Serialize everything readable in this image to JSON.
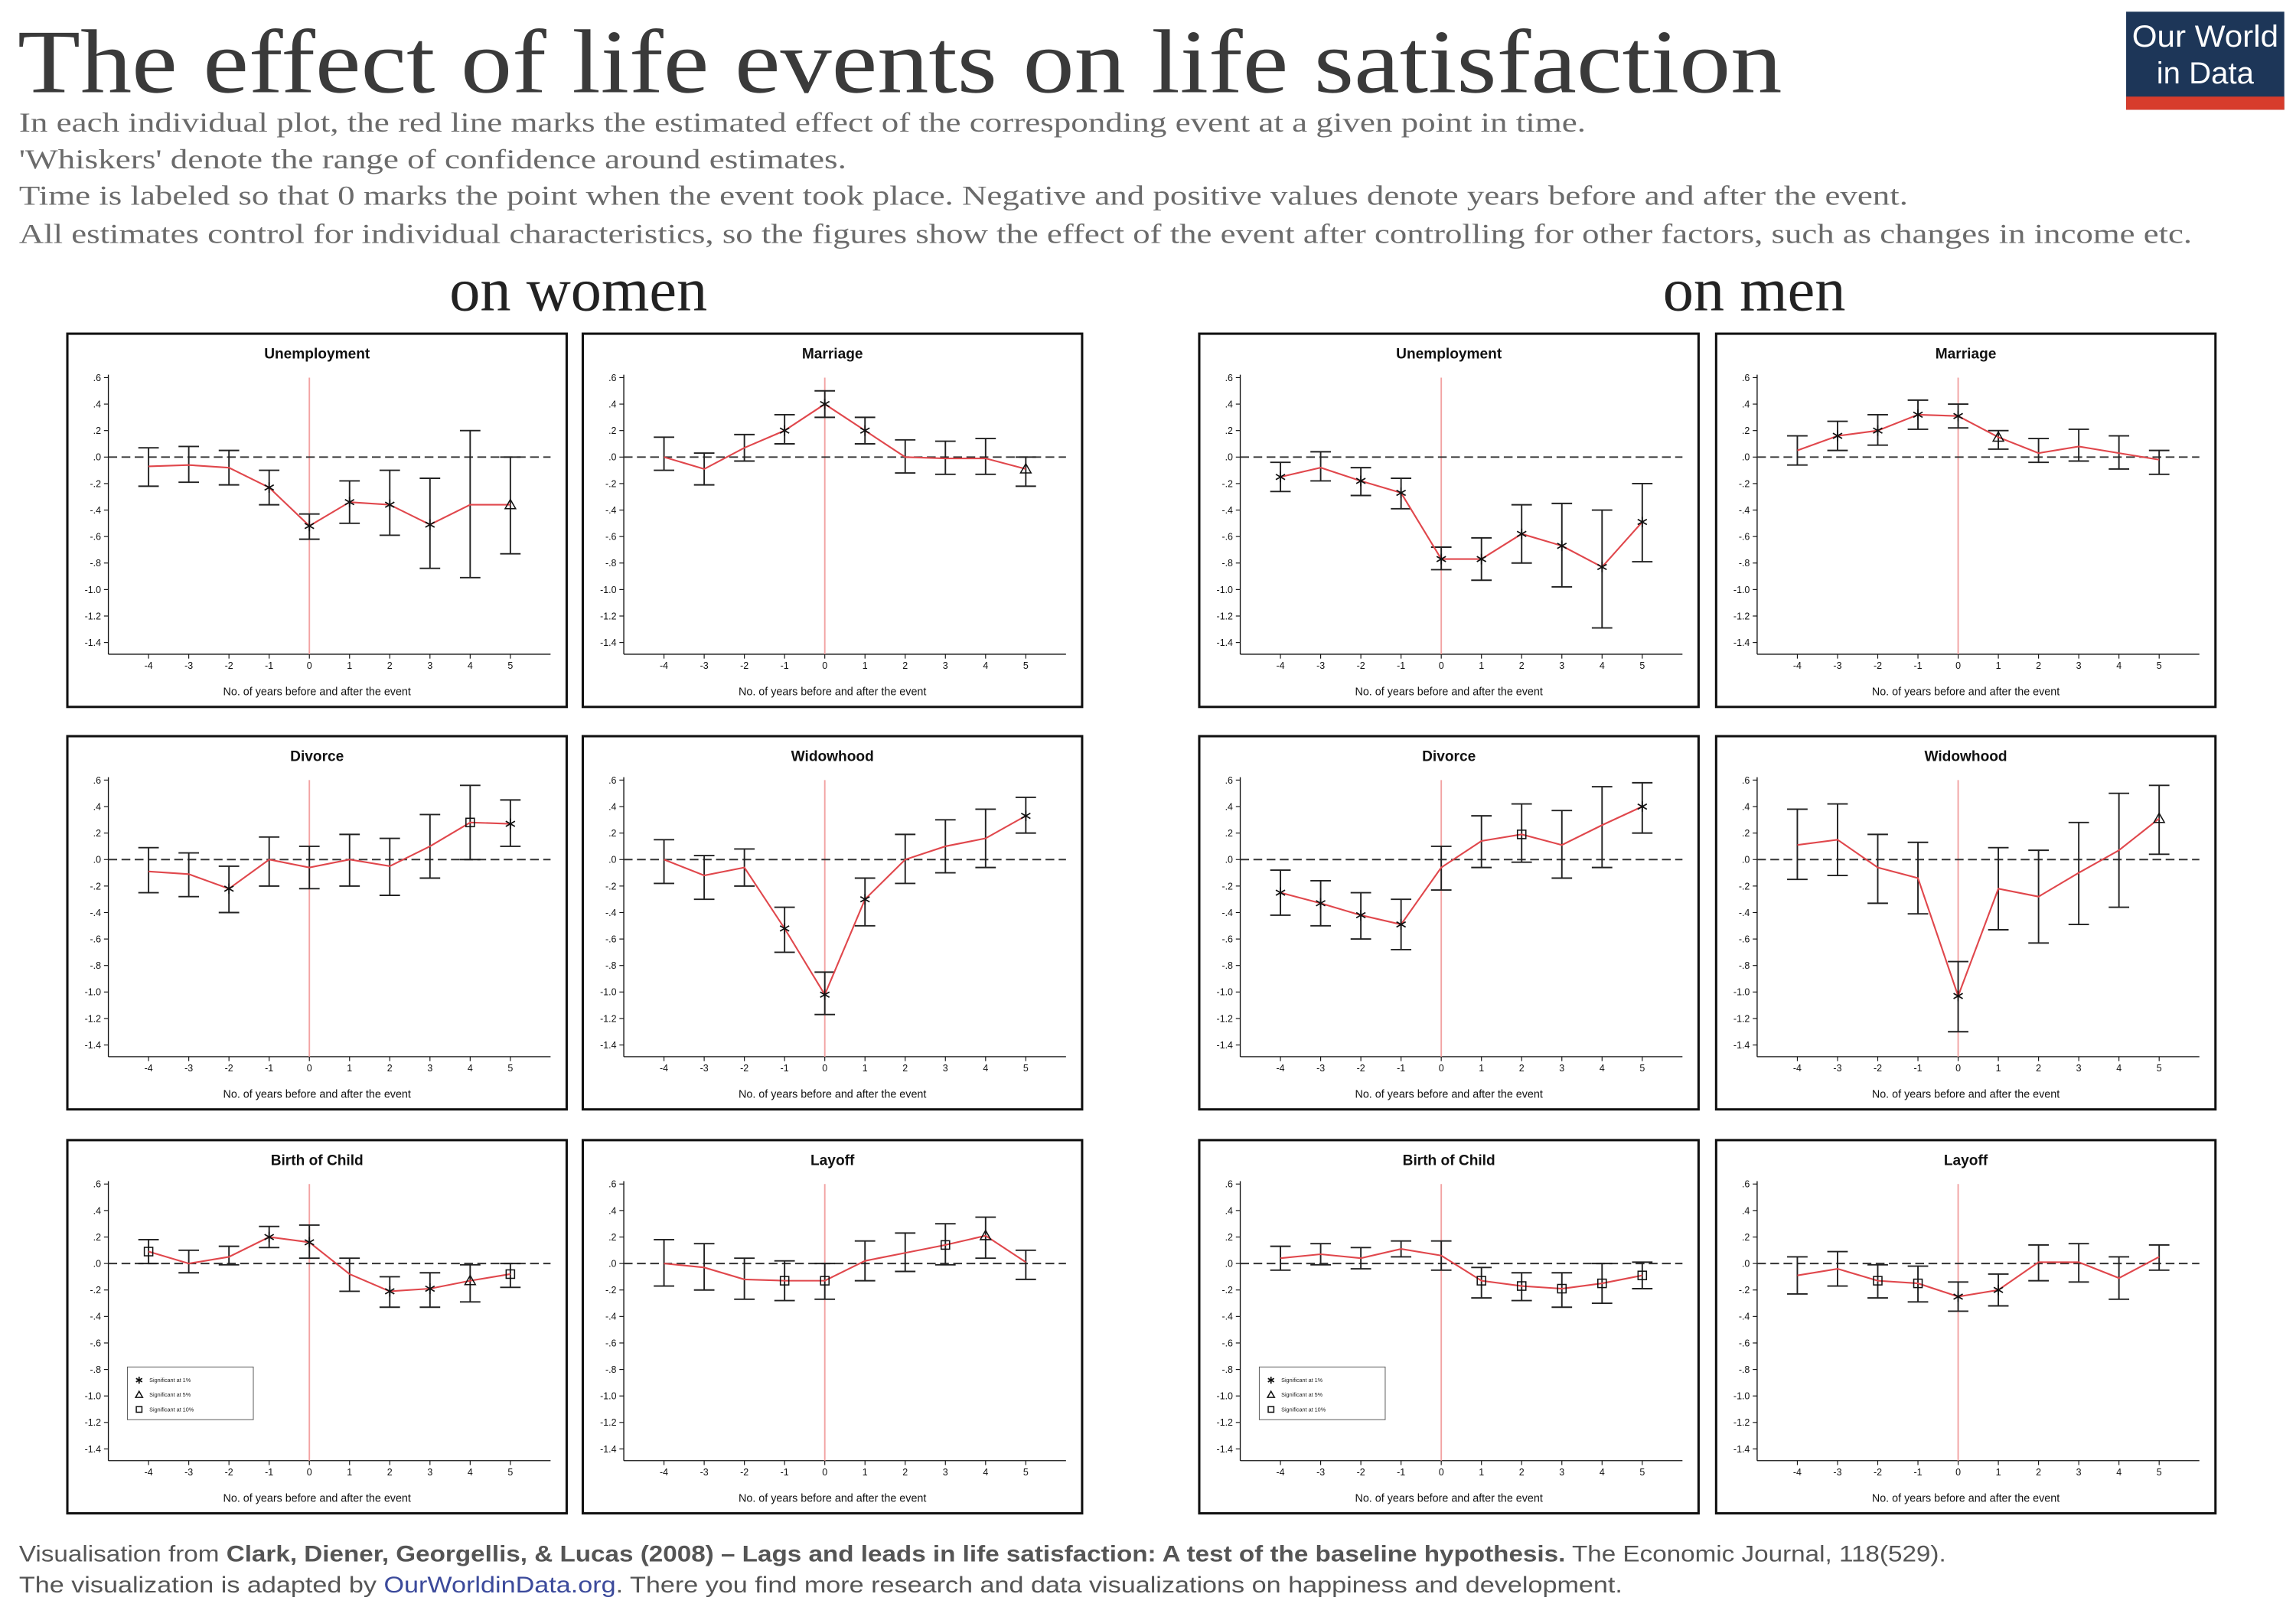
{
  "header": {
    "title": "The effect of life events on life satisfaction",
    "subtitle": [
      "In each individual plot, the red line marks the estimated effect of the corresponding event at a given point in time.",
      "'Whiskers' denote the range of confidence around estimates.",
      "Time is labeled so that 0 marks the point when the event took place. Negative and positive values denote years before and after the event.",
      "All estimates control for individual characteristics, so the figures show the effect of the event after controlling for other factors, such as changes in income etc."
    ],
    "logo": [
      "Our World",
      "in Data"
    ]
  },
  "groups": [
    "on women",
    "on men"
  ],
  "axes": {
    "x_label": "No. of years before and after the event",
    "xticks": [
      -4,
      -3,
      -2,
      -1,
      0,
      1,
      2,
      3,
      4,
      5
    ],
    "yticks": [
      {
        "value": 0.6,
        "label": ".6"
      },
      {
        "value": 0.4,
        "label": ".4"
      },
      {
        "value": 0.2,
        "label": ".2"
      },
      {
        "value": 0,
        "label": ".0"
      },
      {
        "value": -0.2,
        "label": "-.2"
      },
      {
        "value": -0.4,
        "label": "-.4"
      },
      {
        "value": -0.6,
        "label": "-.6"
      },
      {
        "value": -0.8,
        "label": "-.8"
      },
      {
        "value": -1.0,
        "label": "-1.0"
      },
      {
        "value": -1.2,
        "label": "-1.2"
      },
      {
        "value": -1.4,
        "label": "-1.4"
      }
    ],
    "baseline": 0,
    "event_x": 0,
    "line_color": "#e0474c",
    "event_color": "#f2a3a3"
  },
  "chart_data": [
    {
      "type": "line",
      "title": "Unemployment",
      "xlim": [
        -5,
        6
      ],
      "ylim": [
        -1.4,
        0.6
      ],
      "x": [
        -4,
        -3,
        -2,
        -1,
        0,
        1,
        2,
        3,
        4,
        5
      ],
      "values": [
        -0.07,
        -0.06,
        -0.08,
        -0.23,
        -0.52,
        -0.34,
        -0.36,
        -0.51,
        -0.36,
        -0.36
      ],
      "lower": [
        -0.22,
        -0.19,
        -0.21,
        -0.36,
        -0.62,
        -0.5,
        -0.59,
        -0.84,
        -0.91,
        -0.73
      ],
      "upper": [
        0.07,
        0.08,
        0.05,
        -0.1,
        -0.43,
        -0.18,
        -0.1,
        -0.16,
        0.2,
        0.0
      ],
      "markers": [
        null,
        null,
        null,
        "star",
        "star",
        "star",
        "star",
        "star",
        null,
        "triangle"
      ]
    },
    {
      "type": "line",
      "title": "Marriage",
      "xlim": [
        -5,
        6
      ],
      "ylim": [
        -1.4,
        0.6
      ],
      "x": [
        -4,
        -3,
        -2,
        -1,
        0,
        1,
        2,
        3,
        4,
        5
      ],
      "values": [
        0.0,
        -0.09,
        0.07,
        0.2,
        0.4,
        0.2,
        0.0,
        -0.01,
        -0.01,
        -0.09
      ],
      "lower": [
        -0.1,
        -0.21,
        -0.03,
        0.1,
        0.3,
        0.1,
        -0.12,
        -0.13,
        -0.13,
        -0.22
      ],
      "upper": [
        0.15,
        0.03,
        0.17,
        0.32,
        0.5,
        0.3,
        0.13,
        0.12,
        0.14,
        0.0
      ],
      "markers": [
        null,
        null,
        null,
        "star",
        "star",
        "star",
        null,
        null,
        null,
        "triangle"
      ]
    },
    {
      "type": "line",
      "title": "Unemployment",
      "xlim": [
        -5,
        6
      ],
      "ylim": [
        -1.4,
        0.6
      ],
      "x": [
        -4,
        -3,
        -2,
        -1,
        0,
        1,
        2,
        3,
        4,
        5
      ],
      "values": [
        -0.15,
        -0.08,
        -0.18,
        -0.27,
        -0.77,
        -0.77,
        -0.58,
        -0.67,
        -0.83,
        -0.49
      ],
      "lower": [
        -0.26,
        -0.18,
        -0.29,
        -0.39,
        -0.85,
        -0.93,
        -0.8,
        -0.98,
        -1.29,
        -0.79
      ],
      "upper": [
        -0.04,
        0.04,
        -0.08,
        -0.16,
        -0.68,
        -0.61,
        -0.36,
        -0.35,
        -0.4,
        -0.2
      ],
      "markers": [
        "star",
        null,
        "star",
        "star",
        "star",
        "star",
        "star",
        "star",
        "star",
        "star"
      ]
    },
    {
      "type": "line",
      "title": "Marriage",
      "xlim": [
        -5,
        6
      ],
      "ylim": [
        -1.4,
        0.6
      ],
      "x": [
        -4,
        -3,
        -2,
        -1,
        0,
        1,
        2,
        3,
        4,
        5
      ],
      "values": [
        0.05,
        0.16,
        0.2,
        0.32,
        0.31,
        0.15,
        0.03,
        0.08,
        0.03,
        -0.02
      ],
      "lower": [
        -0.06,
        0.05,
        0.09,
        0.21,
        0.22,
        0.06,
        -0.04,
        -0.03,
        -0.09,
        -0.13
      ],
      "upper": [
        0.16,
        0.27,
        0.32,
        0.43,
        0.4,
        0.2,
        0.14,
        0.21,
        0.16,
        0.05
      ],
      "markers": [
        null,
        "star",
        "star",
        "star",
        "star",
        "triangle",
        null,
        null,
        null,
        null
      ]
    },
    {
      "type": "line",
      "title": "Divorce",
      "xlim": [
        -5,
        6
      ],
      "ylim": [
        -1.4,
        0.6
      ],
      "x": [
        -4,
        -3,
        -2,
        -1,
        0,
        1,
        2,
        3,
        4,
        5
      ],
      "values": [
        -0.09,
        -0.11,
        -0.22,
        0.0,
        -0.06,
        0.0,
        -0.05,
        0.1,
        0.28,
        0.27
      ],
      "lower": [
        -0.25,
        -0.28,
        -0.4,
        -0.2,
        -0.22,
        -0.2,
        -0.27,
        -0.14,
        0.0,
        0.1
      ],
      "upper": [
        0.09,
        0.05,
        -0.05,
        0.17,
        0.1,
        0.19,
        0.16,
        0.34,
        0.56,
        0.45
      ],
      "markers": [
        null,
        null,
        "star",
        null,
        null,
        null,
        null,
        null,
        "square",
        "star"
      ]
    },
    {
      "type": "line",
      "title": "Widowhood",
      "xlim": [
        -5,
        6
      ],
      "ylim": [
        -1.4,
        0.6
      ],
      "x": [
        -4,
        -3,
        -2,
        -1,
        0,
        1,
        2,
        3,
        4,
        5
      ],
      "values": [
        0.0,
        -0.12,
        -0.06,
        -0.52,
        -1.02,
        -0.3,
        0.0,
        0.1,
        0.16,
        0.33
      ],
      "lower": [
        -0.18,
        -0.3,
        -0.2,
        -0.7,
        -1.17,
        -0.5,
        -0.18,
        -0.1,
        -0.06,
        0.2
      ],
      "upper": [
        0.15,
        0.03,
        0.08,
        -0.36,
        -0.85,
        -0.14,
        0.19,
        0.3,
        0.38,
        0.47
      ],
      "markers": [
        null,
        null,
        null,
        "star",
        "star",
        "star",
        null,
        null,
        null,
        "star"
      ]
    },
    {
      "type": "line",
      "title": "Divorce",
      "xlim": [
        -5,
        6
      ],
      "ylim": [
        -1.4,
        0.6
      ],
      "x": [
        -4,
        -3,
        -2,
        -1,
        0,
        1,
        2,
        3,
        4,
        5
      ],
      "values": [
        -0.25,
        -0.33,
        -0.42,
        -0.49,
        -0.06,
        0.14,
        0.19,
        0.11,
        0.26,
        0.4
      ],
      "lower": [
        -0.42,
        -0.5,
        -0.6,
        -0.68,
        -0.23,
        -0.06,
        -0.02,
        -0.14,
        -0.06,
        0.2
      ],
      "upper": [
        -0.08,
        -0.16,
        -0.25,
        -0.3,
        0.1,
        0.33,
        0.42,
        0.37,
        0.55,
        0.58
      ],
      "markers": [
        "star",
        "star",
        "star",
        "star",
        null,
        null,
        "square",
        null,
        null,
        "star"
      ]
    },
    {
      "type": "line",
      "title": "Widowhood",
      "xlim": [
        -5,
        6
      ],
      "ylim": [
        -1.4,
        0.6
      ],
      "x": [
        -4,
        -3,
        -2,
        -1,
        0,
        1,
        2,
        3,
        4,
        5
      ],
      "values": [
        0.11,
        0.15,
        -0.06,
        -0.14,
        -1.03,
        -0.22,
        -0.28,
        -0.1,
        0.07,
        0.31
      ],
      "lower": [
        -0.15,
        -0.12,
        -0.33,
        -0.41,
        -1.3,
        -0.53,
        -0.63,
        -0.49,
        -0.36,
        0.04
      ],
      "upper": [
        0.38,
        0.42,
        0.19,
        0.13,
        -0.77,
        0.09,
        0.07,
        0.28,
        0.5,
        0.56
      ],
      "markers": [
        null,
        null,
        null,
        null,
        "star",
        null,
        null,
        null,
        null,
        "triangle"
      ]
    },
    {
      "type": "line",
      "title": "Birth of Child",
      "xlim": [
        -5,
        6
      ],
      "ylim": [
        -1.4,
        0.6
      ],
      "x": [
        -4,
        -3,
        -2,
        -1,
        0,
        1,
        2,
        3,
        4,
        5
      ],
      "values": [
        0.09,
        0.0,
        0.05,
        0.2,
        0.16,
        -0.08,
        -0.21,
        -0.19,
        -0.13,
        -0.08
      ],
      "lower": [
        0.0,
        -0.07,
        -0.01,
        0.12,
        0.04,
        -0.21,
        -0.33,
        -0.33,
        -0.29,
        -0.18
      ],
      "upper": [
        0.18,
        0.1,
        0.13,
        0.28,
        0.29,
        0.04,
        -0.1,
        -0.07,
        -0.01,
        0.0
      ],
      "markers": [
        "square",
        null,
        null,
        "star",
        "star",
        null,
        "star",
        "star",
        "triangle",
        "square"
      ],
      "legend": [
        {
          "label": "Significant at 1%",
          "marker": "star"
        },
        {
          "label": "Significant at 5%",
          "marker": "triangle"
        },
        {
          "label": "Significant at 10%",
          "marker": "square"
        }
      ]
    },
    {
      "type": "line",
      "title": "Layoff",
      "xlim": [
        -5,
        6
      ],
      "ylim": [
        -1.4,
        0.6
      ],
      "x": [
        -4,
        -3,
        -2,
        -1,
        0,
        1,
        2,
        3,
        4,
        5
      ],
      "values": [
        0.0,
        -0.03,
        -0.12,
        -0.13,
        -0.13,
        0.02,
        0.08,
        0.14,
        0.21,
        0.01
      ],
      "lower": [
        -0.17,
        -0.2,
        -0.27,
        -0.28,
        -0.27,
        -0.13,
        -0.06,
        -0.01,
        0.04,
        -0.12
      ],
      "upper": [
        0.18,
        0.15,
        0.04,
        0.02,
        0.0,
        0.17,
        0.23,
        0.3,
        0.35,
        0.1
      ],
      "markers": [
        null,
        null,
        null,
        "square",
        "square",
        null,
        null,
        "square",
        "triangle",
        null
      ]
    },
    {
      "type": "line",
      "title": "Birth of Child",
      "xlim": [
        -5,
        6
      ],
      "ylim": [
        -1.4,
        0.6
      ],
      "x": [
        -4,
        -3,
        -2,
        -1,
        0,
        1,
        2,
        3,
        4,
        5
      ],
      "values": [
        0.04,
        0.07,
        0.04,
        0.11,
        0.06,
        -0.13,
        -0.17,
        -0.19,
        -0.15,
        -0.09
      ],
      "lower": [
        -0.05,
        -0.01,
        -0.04,
        0.05,
        -0.05,
        -0.26,
        -0.28,
        -0.33,
        -0.3,
        -0.19
      ],
      "upper": [
        0.13,
        0.15,
        0.12,
        0.17,
        0.17,
        -0.03,
        -0.07,
        -0.07,
        0.0,
        0.01
      ],
      "markers": [
        null,
        null,
        null,
        null,
        null,
        "square",
        "square",
        "square",
        "square",
        "square"
      ],
      "legend": [
        {
          "label": "Significant at 1%",
          "marker": "star"
        },
        {
          "label": "Significant at 5%",
          "marker": "triangle"
        },
        {
          "label": "Significant at 10%",
          "marker": "square"
        }
      ]
    },
    {
      "type": "line",
      "title": "Layoff",
      "xlim": [
        -5,
        6
      ],
      "ylim": [
        -1.4,
        0.6
      ],
      "x": [
        -4,
        -3,
        -2,
        -1,
        0,
        1,
        2,
        3,
        4,
        5
      ],
      "values": [
        -0.09,
        -0.04,
        -0.13,
        -0.15,
        -0.25,
        -0.2,
        0.01,
        0.01,
        -0.11,
        0.05
      ],
      "lower": [
        -0.23,
        -0.17,
        -0.26,
        -0.29,
        -0.36,
        -0.32,
        -0.13,
        -0.14,
        -0.27,
        -0.05
      ],
      "upper": [
        0.05,
        0.09,
        -0.01,
        -0.02,
        -0.14,
        -0.08,
        0.14,
        0.15,
        0.05,
        0.14
      ],
      "markers": [
        null,
        null,
        "square",
        "square",
        "star",
        "star",
        null,
        null,
        null,
        null
      ]
    }
  ],
  "footer": {
    "line1": [
      "Visualisation from ",
      "Clark, Diener, Georgellis, & Lucas (2008) – Lags and leads in life satisfaction: A test of the baseline hypothesis.",
      " The Economic Journal, 118(529)."
    ],
    "line2": [
      "The visualization is adapted by ",
      "OurWorldinData.org",
      ". There you find more research and data visualizations on happiness and development."
    ]
  }
}
